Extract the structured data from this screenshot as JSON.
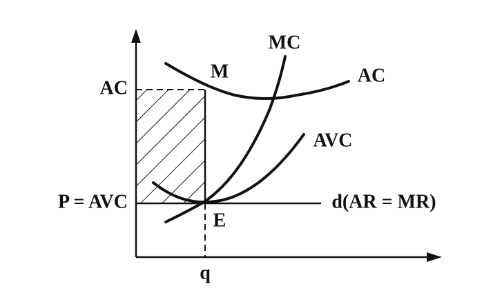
{
  "labels": {
    "y_ac": "AC",
    "y_p": "P = AVC",
    "m": "M",
    "mc": "MC",
    "ac": "AC",
    "avc": "AVC",
    "d": "d(AR = MR)",
    "e": "E",
    "q": "q"
  }
}
